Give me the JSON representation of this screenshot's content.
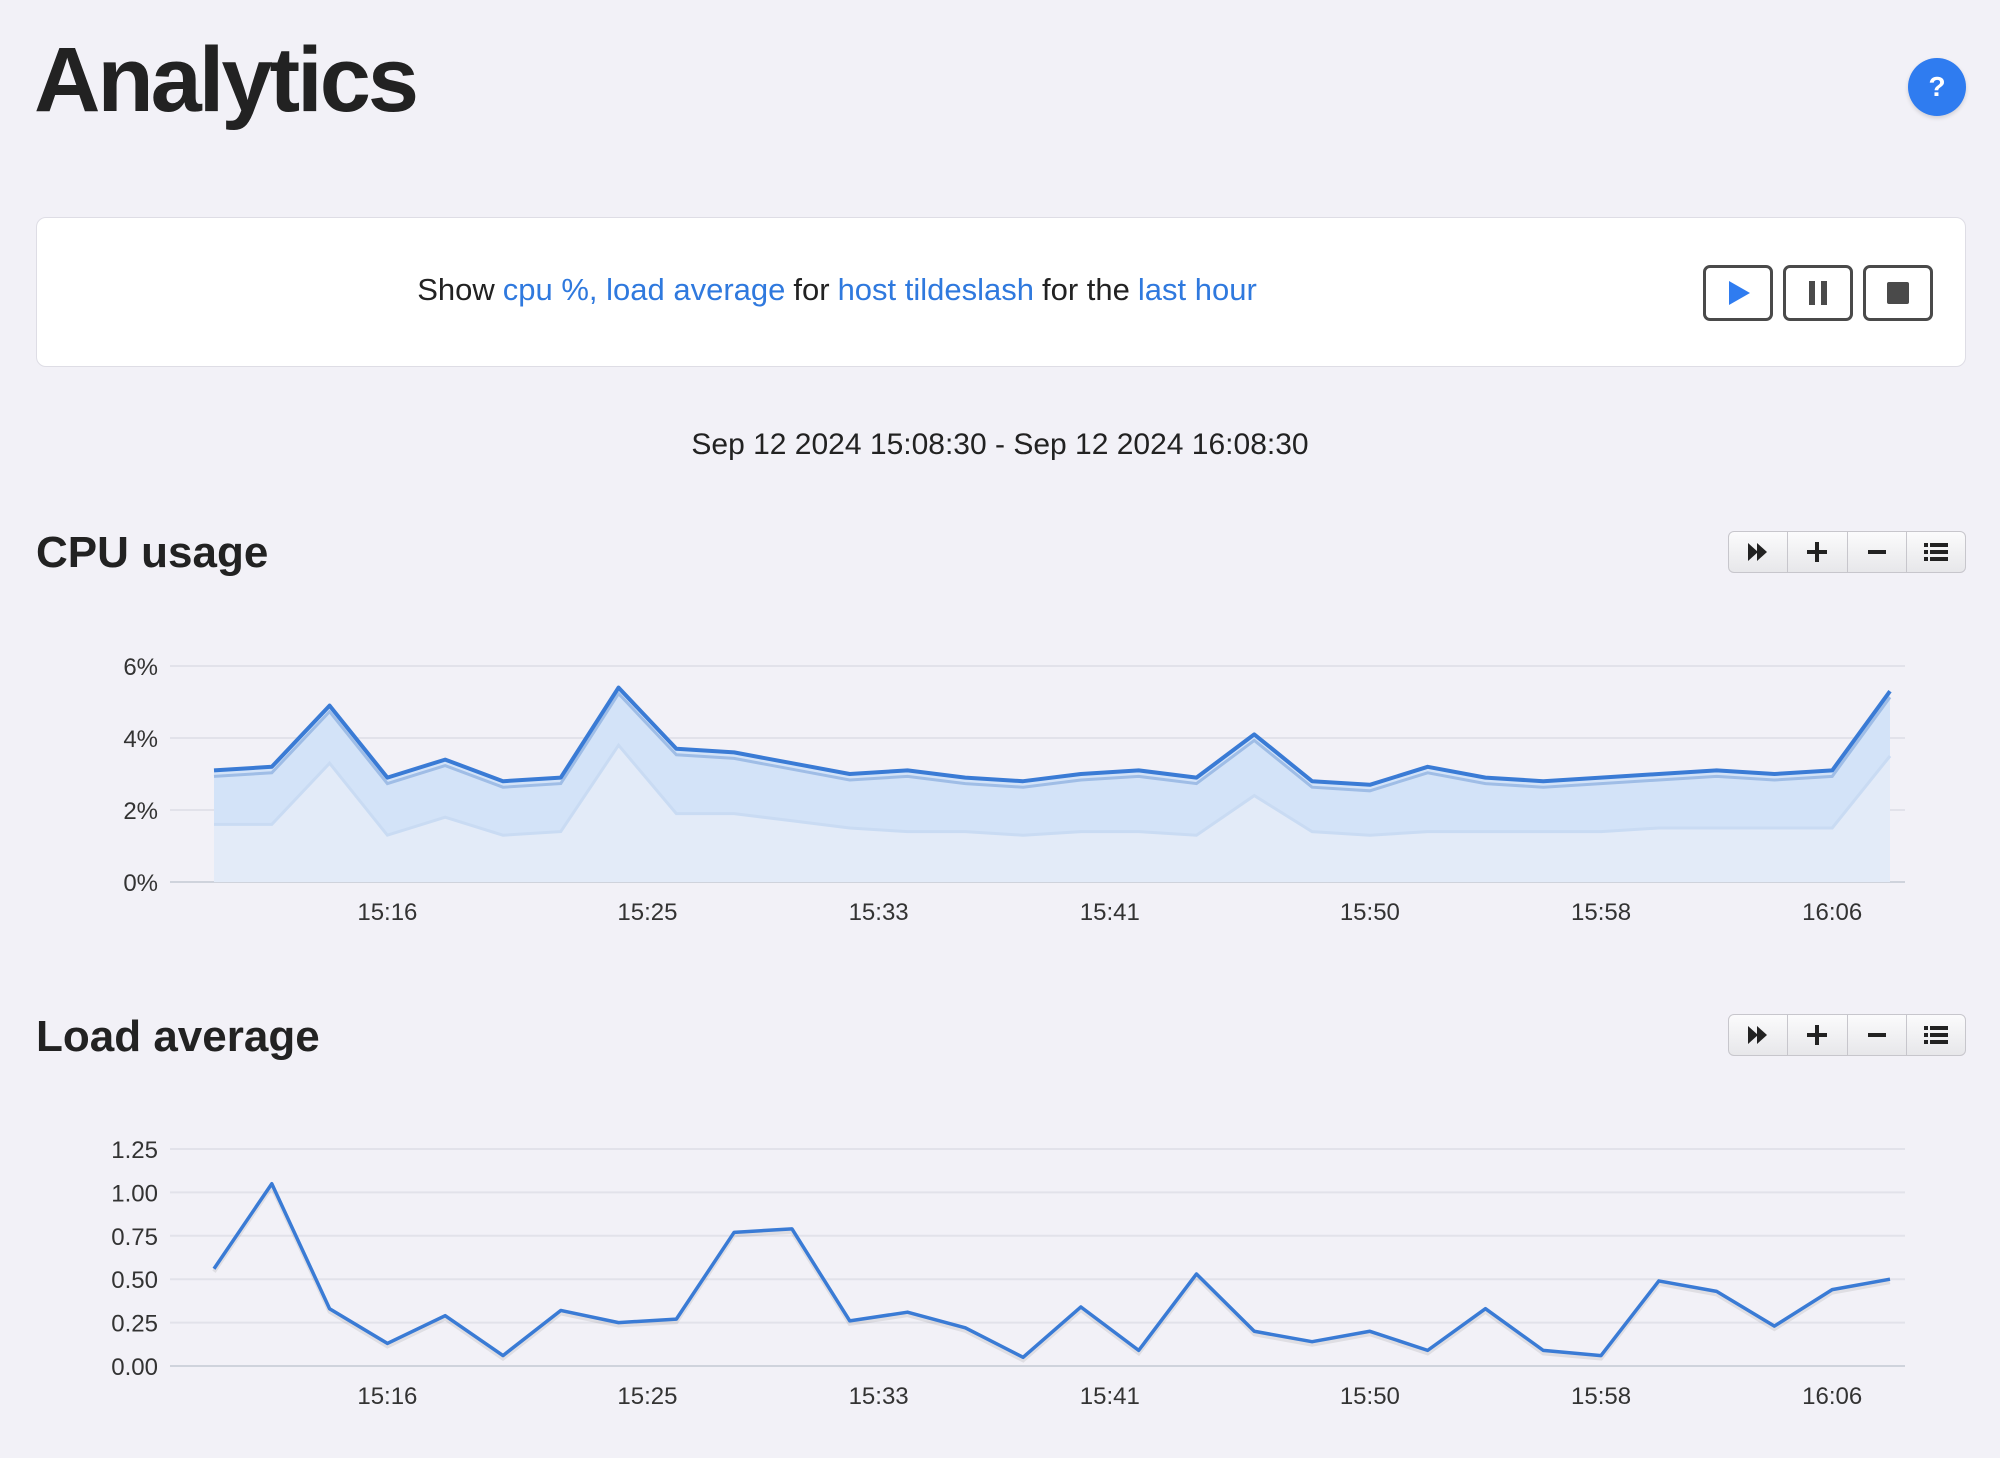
{
  "header": {
    "title": "Analytics",
    "help_label": "?"
  },
  "query": {
    "show_word": "Show",
    "metrics": "cpu %, load average",
    "for_word": "for",
    "host": "host tildeslash",
    "for_the": "for the",
    "period": "last hour"
  },
  "controls": [
    {
      "name": "play-button",
      "icon": "play-icon"
    },
    {
      "name": "pause-button",
      "icon": "pause-icon"
    },
    {
      "name": "stop-button",
      "icon": "stop-icon"
    }
  ],
  "time_range": "Sep 12 2024 15:08:30 - Sep 12 2024 16:08:30",
  "accent_color": "#2f7cf0",
  "chart_data": [
    {
      "type": "area",
      "title": "CPU usage",
      "stacked": true,
      "x": [
        "15:10",
        "15:12",
        "15:14",
        "15:16",
        "15:18",
        "15:20",
        "15:22",
        "15:24",
        "15:26",
        "15:28",
        "15:30",
        "15:32",
        "15:34",
        "15:36",
        "15:38",
        "15:40",
        "15:42",
        "15:44",
        "15:46",
        "15:48",
        "15:50",
        "15:52",
        "15:54",
        "15:56",
        "15:58",
        "16:00",
        "16:02",
        "16:04",
        "16:06",
        "16:08"
      ],
      "series": [
        {
          "values": [
            1.6,
            1.6,
            3.3,
            1.3,
            1.8,
            1.3,
            1.4,
            3.8,
            1.9,
            1.9,
            1.7,
            1.5,
            1.4,
            1.4,
            1.3,
            1.4,
            1.4,
            1.3,
            2.4,
            1.4,
            1.3,
            1.4,
            1.4,
            1.4,
            1.4,
            1.5,
            1.5,
            1.5,
            1.5,
            3.5
          ]
        },
        {
          "values": [
            1.5,
            1.6,
            1.6,
            1.6,
            1.6,
            1.5,
            1.5,
            1.6,
            1.8,
            1.7,
            1.6,
            1.5,
            1.7,
            1.5,
            1.5,
            1.6,
            1.7,
            1.6,
            1.7,
            1.4,
            1.4,
            1.8,
            1.5,
            1.4,
            1.5,
            1.5,
            1.6,
            1.5,
            1.6,
            1.8
          ]
        }
      ],
      "ylim": [
        0,
        6
      ],
      "yticks": [
        "0%",
        "2%",
        "4%",
        "6%"
      ],
      "xticks": [
        "15:16",
        "15:25",
        "15:33",
        "15:41",
        "15:50",
        "15:58",
        "16:06"
      ],
      "toolbar": [
        "fast-forward-icon",
        "plus-icon",
        "minus-icon",
        "list-icon"
      ]
    },
    {
      "type": "line",
      "title": "Load average",
      "x": [
        "15:10",
        "15:12",
        "15:14",
        "15:16",
        "15:18",
        "15:20",
        "15:22",
        "15:24",
        "15:26",
        "15:28",
        "15:30",
        "15:32",
        "15:34",
        "15:36",
        "15:38",
        "15:40",
        "15:42",
        "15:44",
        "15:46",
        "15:48",
        "15:50",
        "15:52",
        "15:54",
        "15:56",
        "15:58",
        "16:00",
        "16:02",
        "16:04",
        "16:06",
        "16:08"
      ],
      "series": [
        {
          "values": [
            0.56,
            1.05,
            0.33,
            0.13,
            0.29,
            0.06,
            0.32,
            0.25,
            0.27,
            0.77,
            0.79,
            0.26,
            0.31,
            0.22,
            0.05,
            0.34,
            0.09,
            0.53,
            0.2,
            0.14,
            0.2,
            0.09,
            0.33,
            0.09,
            0.06,
            0.49,
            0.43,
            0.23,
            0.44,
            0.5
          ]
        }
      ],
      "ylim": [
        0,
        1.25
      ],
      "yticks": [
        "0.00",
        "0.25",
        "0.50",
        "0.75",
        "1.00",
        "1.25"
      ],
      "xticks": [
        "15:16",
        "15:25",
        "15:33",
        "15:41",
        "15:50",
        "15:58",
        "16:06"
      ],
      "toolbar": [
        "fast-forward-icon",
        "plus-icon",
        "minus-icon",
        "list-icon"
      ]
    }
  ]
}
